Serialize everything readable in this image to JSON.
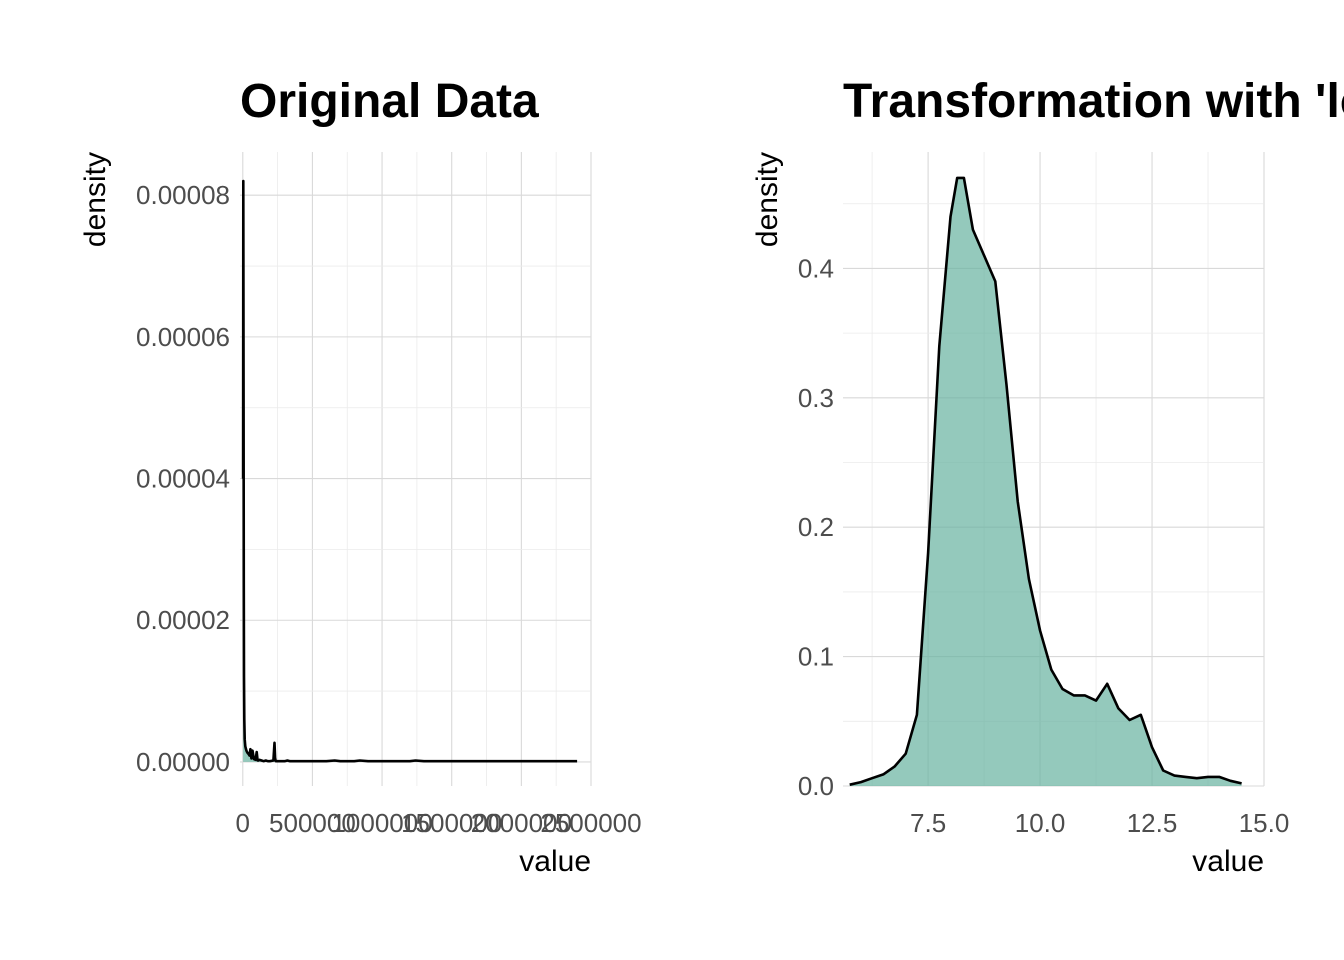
{
  "chart_data": [
    {
      "type": "area",
      "title": "Original Data",
      "xlabel": "value",
      "ylabel": "density",
      "xlim": [
        -20000,
        2500000
      ],
      "ylim": [
        -3.4e-06,
        8.61e-05
      ],
      "x_ticks": [
        0,
        500000,
        1000000,
        1500000,
        2000000,
        2500000
      ],
      "x_tick_labels": [
        "0",
        "500000",
        "1000000",
        "1500000",
        "2000000",
        "2500000"
      ],
      "y_ticks": [
        0,
        2e-05,
        4e-05,
        6e-05,
        8e-05
      ],
      "y_tick_labels": [
        "0.00000",
        "0.00002",
        "0.00004",
        "0.00006",
        "0.00008"
      ],
      "grid": true,
      "fill_color": "#66b2a0",
      "line_color": "#000000",
      "x": [
        2000,
        4000,
        5500,
        7000,
        9000,
        11000,
        14000,
        18000,
        23000,
        28000,
        33000,
        38000,
        42000,
        48000,
        55000,
        62000,
        70000,
        80000,
        92000,
        100000,
        106000,
        112000,
        120000,
        135000,
        150000,
        165000,
        180000,
        195000,
        220000,
        228000,
        232000,
        236000,
        245000,
        260000,
        300000,
        320000,
        340000,
        400000,
        500000,
        600000,
        660000,
        700000,
        800000,
        840000,
        900000,
        1000000,
        1100000,
        1200000,
        1240000,
        1300000,
        1400000,
        1500000,
        1600000,
        1700000,
        1800000,
        1900000,
        2000000,
        2100000,
        2200000,
        2300000,
        2400000
      ],
      "y": [
        4e-05,
        8.2e-05,
        5e-05,
        2.5e-05,
        1.2e-05,
        6e-06,
        3.2e-06,
        2.2e-06,
        1.8e-06,
        1.5e-06,
        1.3e-06,
        1.2e-06,
        1.1e-06,
        9e-07,
        1.8e-06,
        5e-07,
        1.6e-06,
        4e-07,
        3e-07,
        1.4e-06,
        2e-07,
        2e-07,
        3e-07,
        2e-07,
        1e-07,
        2e-07,
        1e-07,
        1e-07,
        2e-07,
        2.7e-06,
        6e-07,
        1e-07,
        1e-07,
        1e-07,
        1e-07,
        2e-07,
        1e-07,
        1e-07,
        1e-07,
        1e-07,
        2e-07,
        1e-07,
        1e-07,
        2e-07,
        1e-07,
        1e-07,
        1e-07,
        1e-07,
        2e-07,
        1e-07,
        1e-07,
        1e-07,
        1e-07,
        1e-07,
        1e-07,
        1e-07,
        1e-07,
        1e-07,
        1e-07,
        1e-07,
        1e-07
      ]
    },
    {
      "type": "area",
      "title": "Transformation with 'log'",
      "xlabel": "value",
      "ylabel": "density",
      "xlim": [
        5.6,
        15.0
      ],
      "ylim": [
        -0.0,
        0.49
      ],
      "x_ticks": [
        7.5,
        10.0,
        12.5,
        15.0
      ],
      "x_tick_labels": [
        "7.5",
        "10.0",
        "12.5",
        "15.0"
      ],
      "y_ticks": [
        0.0,
        0.1,
        0.2,
        0.3,
        0.4
      ],
      "y_tick_labels": [
        "0.0",
        "0.1",
        "0.2",
        "0.3",
        "0.4"
      ],
      "grid": true,
      "fill_color": "#66b2a0",
      "line_color": "#000000",
      "x": [
        5.75,
        6.0,
        6.25,
        6.5,
        6.75,
        7.0,
        7.25,
        7.5,
        7.75,
        8.0,
        8.15,
        8.3,
        8.5,
        8.75,
        9.0,
        9.25,
        9.5,
        9.75,
        10.0,
        10.25,
        10.5,
        10.75,
        11.0,
        11.25,
        11.5,
        11.75,
        12.0,
        12.25,
        12.5,
        12.75,
        13.0,
        13.25,
        13.5,
        13.75,
        14.0,
        14.25,
        14.5
      ],
      "y": [
        0.001,
        0.003,
        0.006,
        0.009,
        0.015,
        0.025,
        0.055,
        0.18,
        0.34,
        0.44,
        0.47,
        0.47,
        0.43,
        0.41,
        0.39,
        0.31,
        0.22,
        0.16,
        0.12,
        0.09,
        0.075,
        0.07,
        0.07,
        0.066,
        0.079,
        0.06,
        0.051,
        0.055,
        0.03,
        0.012,
        0.008,
        0.007,
        0.006,
        0.007,
        0.007,
        0.004,
        0.002
      ]
    }
  ]
}
